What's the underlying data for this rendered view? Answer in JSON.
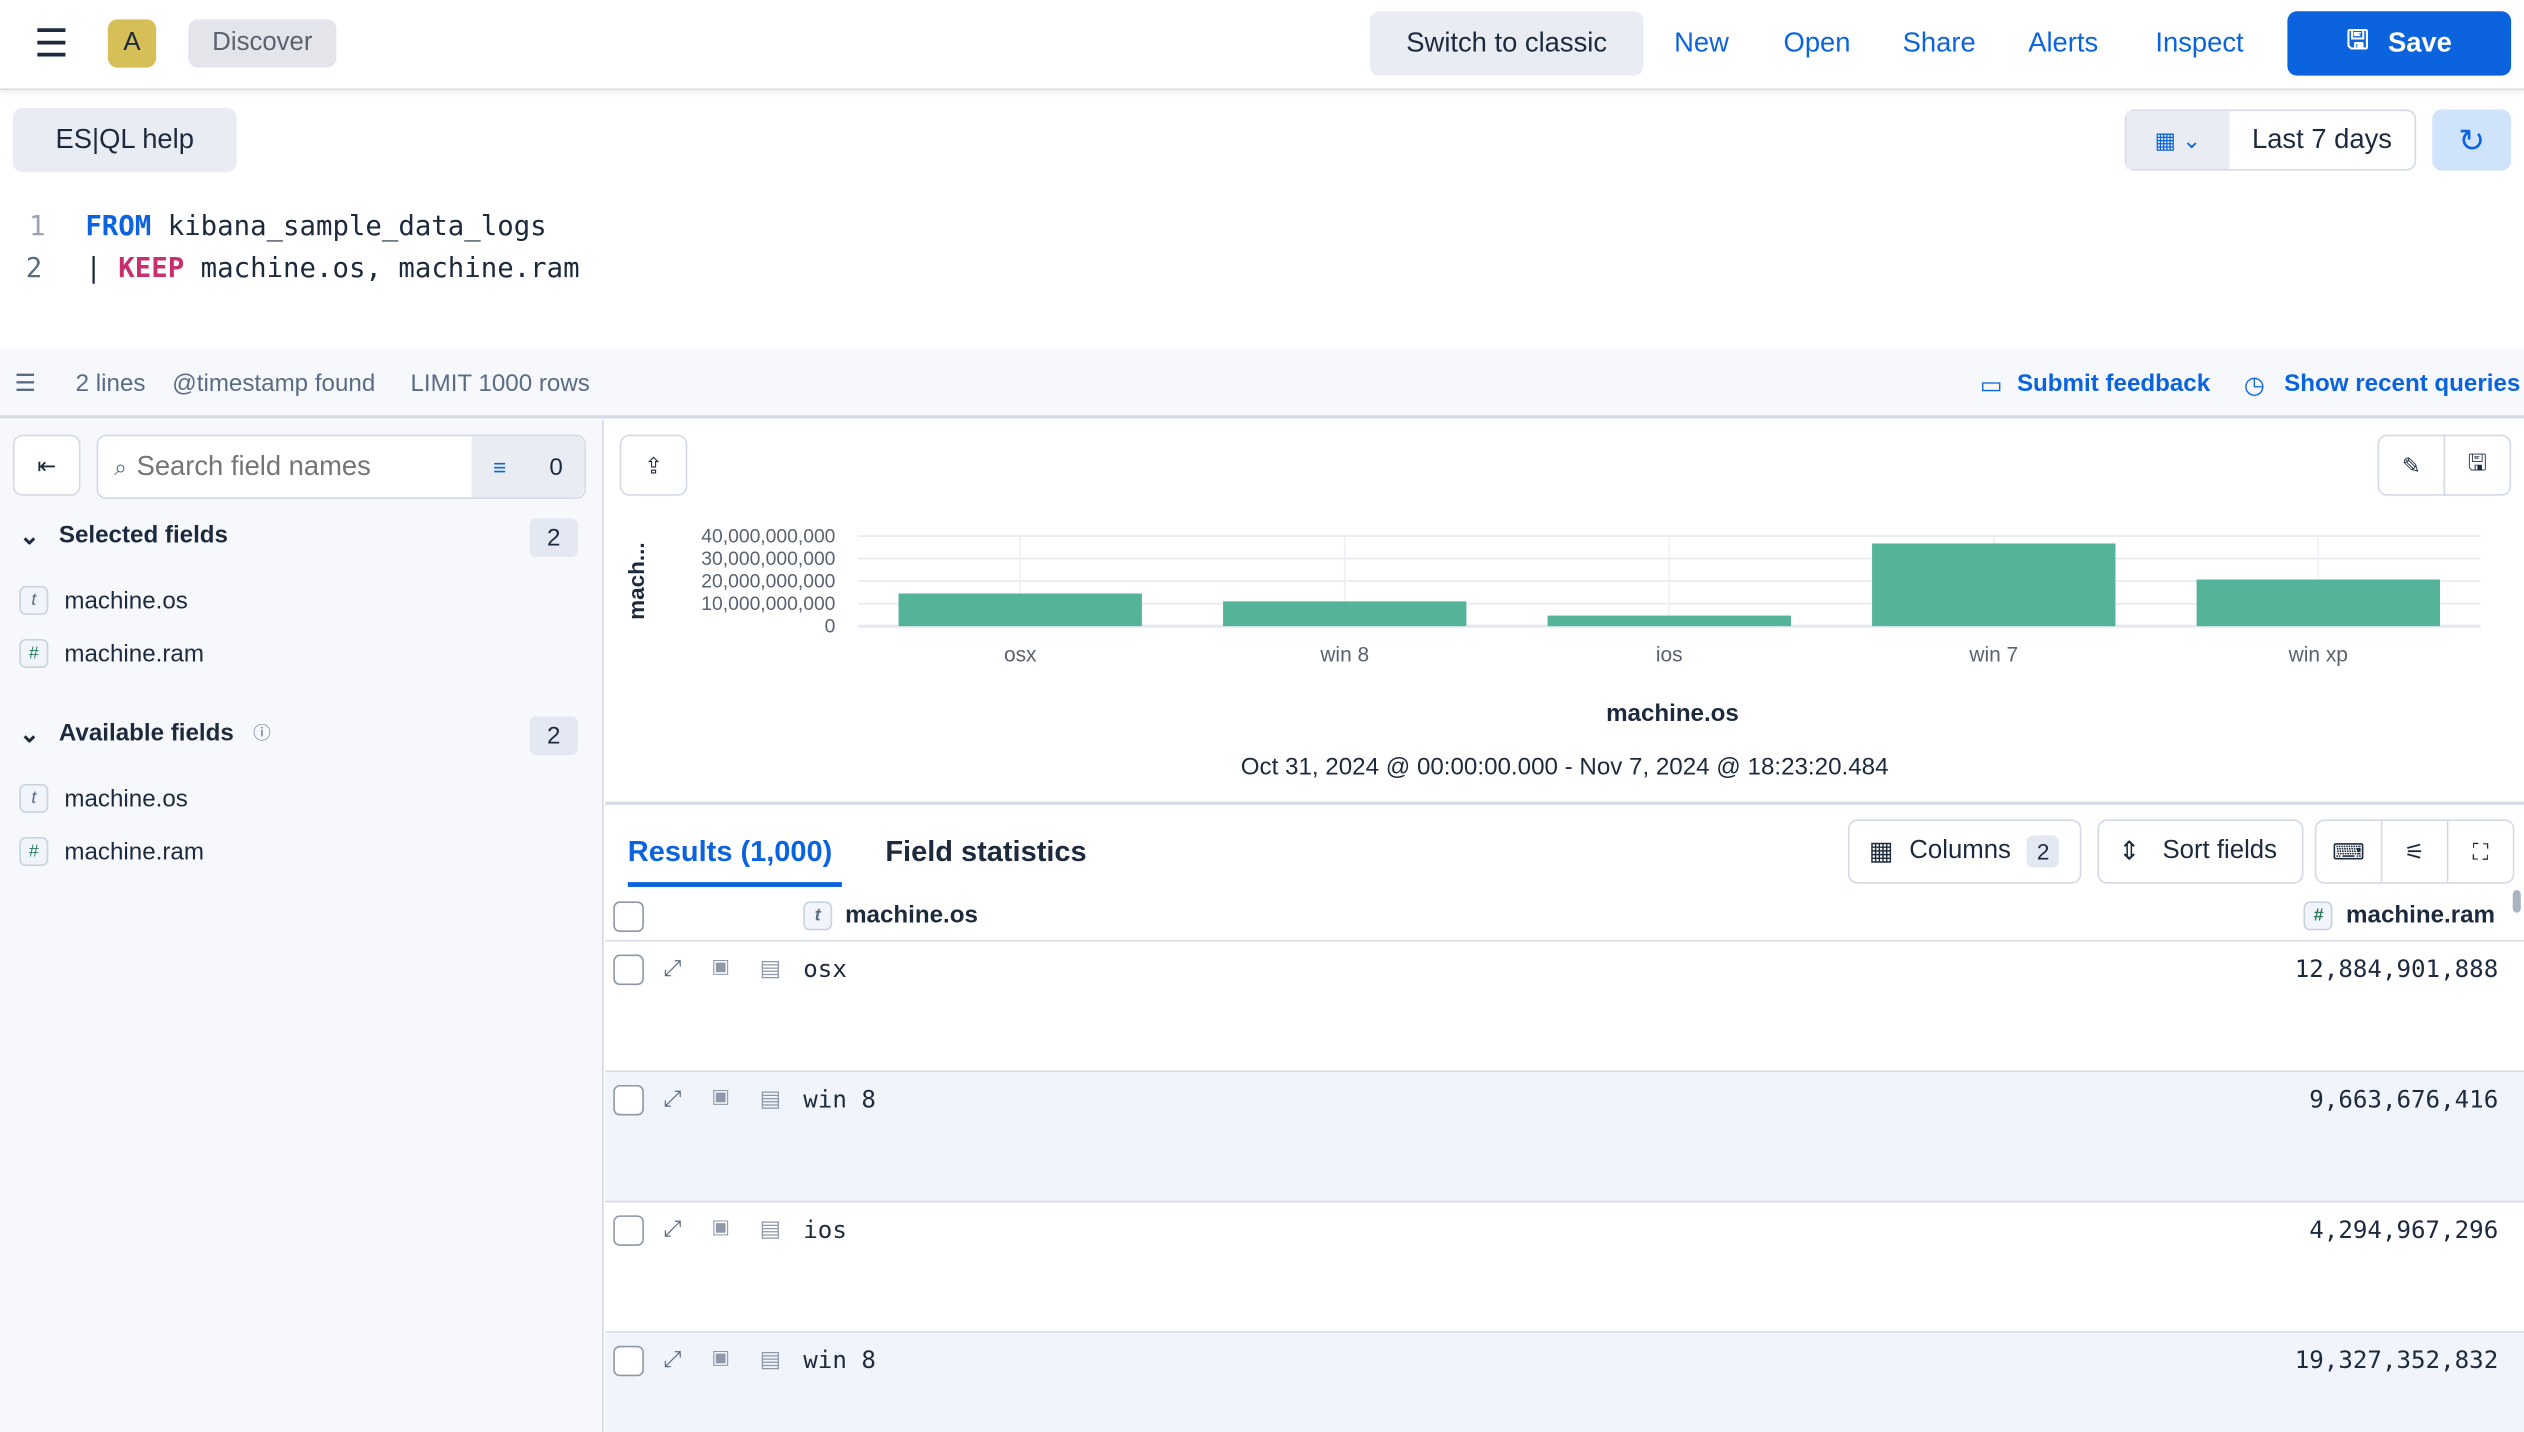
{
  "header": {
    "avatar": "A",
    "app": "Discover",
    "switch_classic": "Switch to classic",
    "new": "New",
    "open": "Open",
    "share": "Share",
    "alerts": "Alerts",
    "inspect": "Inspect",
    "save": "Save"
  },
  "query": {
    "help": "ES|QL help",
    "time_range": "Last 7 days",
    "lines": [
      {
        "num": "1",
        "keyword": "FROM",
        "rest": " kibana_sample_data_logs",
        "prefix": ""
      },
      {
        "num": "2",
        "prefix": "| ",
        "keyword": "KEEP",
        "rest": " machine.os, machine.ram"
      }
    ],
    "status": {
      "lines": "2 lines",
      "timestamp": "@timestamp found",
      "limit": "LIMIT 1000 rows",
      "feedback": "Submit feedback",
      "recent": "Show recent queries"
    }
  },
  "sidebar": {
    "search_placeholder": "Search field names",
    "filter_count": "0",
    "selected": {
      "title": "Selected fields",
      "count": "2",
      "fields": [
        {
          "type": "t",
          "name": "machine.os"
        },
        {
          "type": "#",
          "name": "machine.ram"
        }
      ]
    },
    "available": {
      "title": "Available fields",
      "count": "2",
      "fields": [
        {
          "type": "t",
          "name": "machine.os"
        },
        {
          "type": "#",
          "name": "machine.ram"
        }
      ]
    }
  },
  "chart_data": {
    "type": "bar",
    "categories": [
      "osx",
      "win 8",
      "ios",
      "win 7",
      "win xp"
    ],
    "values": [
      14500000000,
      11000000000,
      4700000000,
      36700000000,
      20700000000
    ],
    "xlabel": "machine.os",
    "ylabel": "mach...",
    "ylim": [
      0,
      40000000000
    ],
    "yticks": [
      "40,000,000,000",
      "30,000,000,000",
      "20,000,000,000",
      "10,000,000,000",
      "0"
    ],
    "grid": true,
    "color": "#54b399",
    "subtitle": "Oct 31, 2024 @ 00:00:00.000 - Nov 7, 2024 @ 18:23:20.484"
  },
  "results": {
    "tab_results": "Results (1,000)",
    "tab_stats": "Field statistics",
    "columns": "Columns",
    "columns_count": "2",
    "sort": "Sort fields",
    "headers": [
      {
        "type": "t",
        "name": "machine.os"
      },
      {
        "type": "#",
        "name": "machine.ram"
      }
    ],
    "rows": [
      {
        "os": "osx",
        "ram": "12,884,901,888"
      },
      {
        "os": "win 8",
        "ram": "9,663,676,416"
      },
      {
        "os": "ios",
        "ram": "4,294,967,296"
      },
      {
        "os": "win 8",
        "ram": "19,327,352,832"
      }
    ]
  }
}
